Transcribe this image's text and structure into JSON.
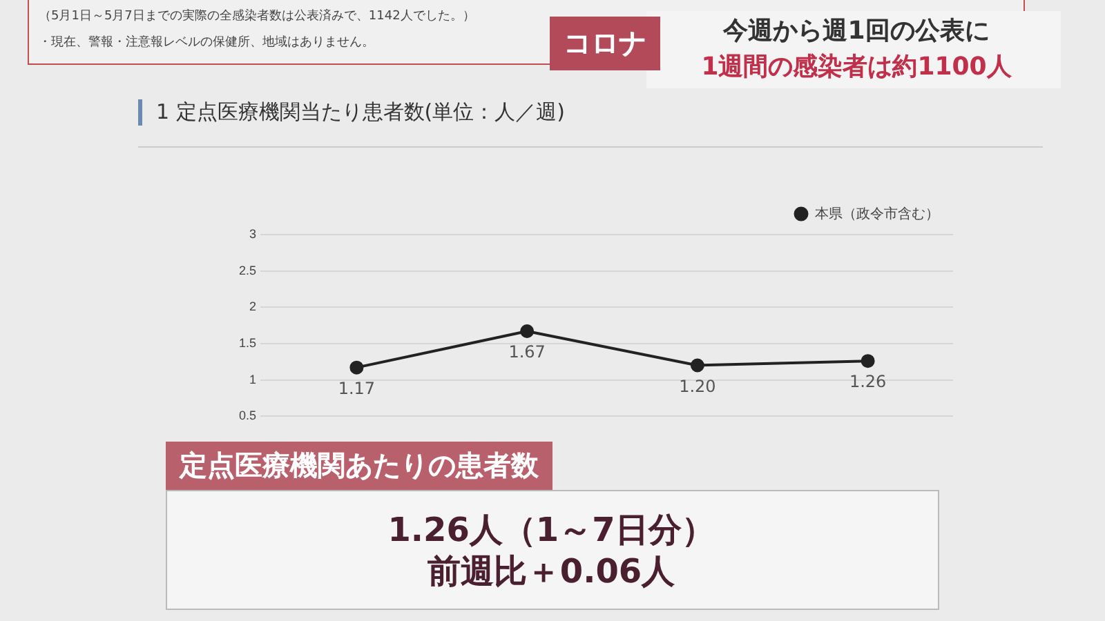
{
  "chart_data": {
    "type": "line",
    "title": "1 定点医療機関当たり患者数(単位：人／週)",
    "categories": [
      null,
      null,
      null,
      null
    ],
    "series": [
      {
        "name": "本県（政令市含む）",
        "color": "#222222",
        "values": [
          1.17,
          1.67,
          1.2,
          1.26
        ],
        "value_labels": [
          "1.17",
          "1.67",
          "1.20",
          "1.26"
        ]
      }
    ],
    "ylim": [
      0.5,
      3
    ],
    "yticks": [
      0.5,
      1,
      1.5,
      2,
      2.5,
      3
    ],
    "grid": "y",
    "legend": "top right",
    "marker": "circle",
    "line_style": "solid",
    "annotations": [
      "（5月1日～5月7日までの実際の全感染者数は公表済みで、1142人でした。）",
      "・現在、警報・注意報レベルの保健所、地域はありません。",
      "コロナ",
      "今週から週1回の公表に",
      "1週間の感染者は約1100人",
      "定点医療機関あたりの患者数",
      "1.26人（1～7日分）",
      "前週比＋0.06人"
    ]
  }
}
